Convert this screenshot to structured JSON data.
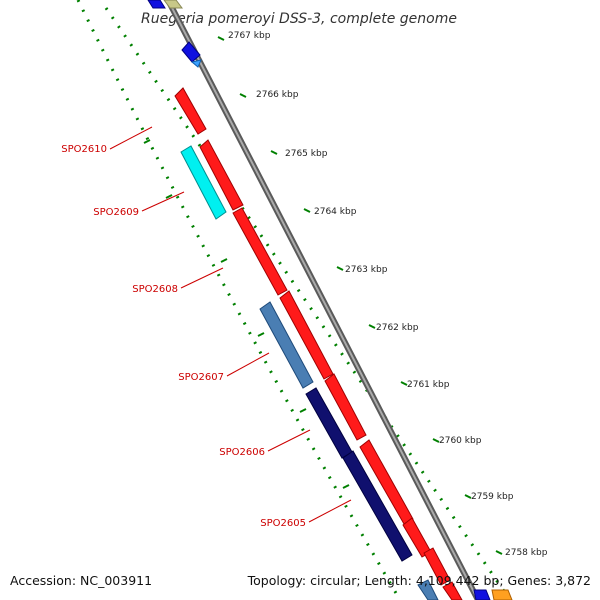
{
  "title": "Ruegeria pomeroyi DSS-3, complete genome",
  "colors": {
    "forward_cds": "#ff1a1a",
    "reverse_cds_navy": "#10106e",
    "reverse_cds_steel": "#4a7eb3",
    "reverse_cds_cyan": "#00f0f0",
    "small_feature_blue": "#1010e0",
    "small_feature_lightblue": "#3aa0ff",
    "olive_feature": "#c8c888",
    "orange_feature": "#ffa020",
    "backbone": "#8c8c8c",
    "tick_marks": "#008000",
    "label_color": "#cc0000"
  },
  "ruler_labels": [
    "2767 kbp",
    "2766 kbp",
    "2765 kbp",
    "2764 kbp",
    "2763 kbp",
    "2762 kbp",
    "2761 kbp",
    "2760 kbp",
    "2759 kbp",
    "2758 kbp"
  ],
  "gene_labels": [
    "SPO2610",
    "SPO2609",
    "SPO2608",
    "SPO2607",
    "SPO2606",
    "SPO2605"
  ],
  "footer": {
    "accession": "Accession: NC_003911",
    "summary": "Topology: circular; Length: 4,109,442 bp; Genes: 3,872"
  }
}
